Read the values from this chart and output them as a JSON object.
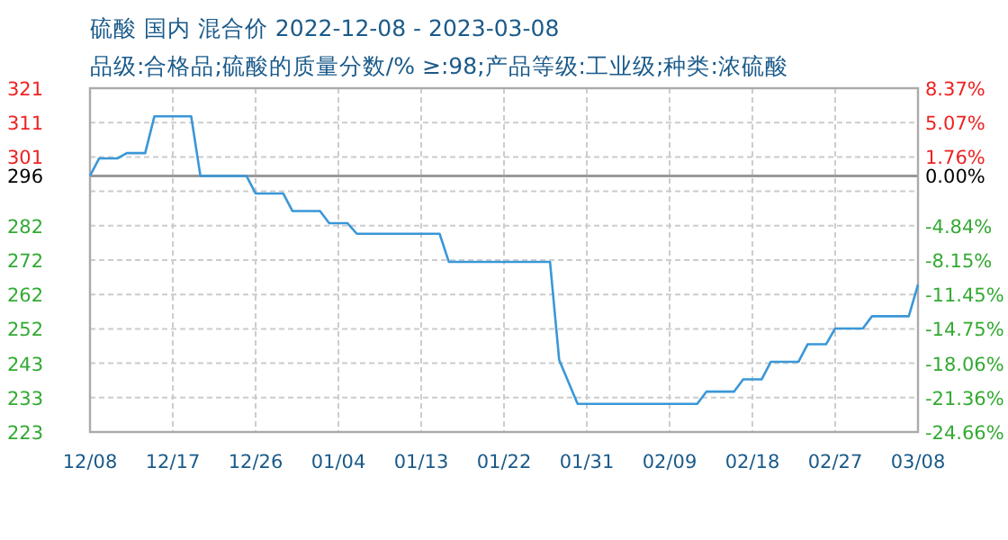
{
  "chart_data": {
    "type": "line",
    "title": "硫酸 国内 混合价 2022-12-08 - 2023-03-08",
    "subtitle": "品级:合格品;硫酸的质量分数/% ≥:98;产品等级:工业级;种类:浓硫酸",
    "x": [
      "2022-12-08",
      "2022-12-09",
      "2022-12-11",
      "2022-12-12",
      "2022-12-14",
      "2022-12-15",
      "2022-12-19",
      "2022-12-20",
      "2022-12-25",
      "2022-12-26",
      "2022-12-29",
      "2022-12-30",
      "2023-01-02",
      "2023-01-03",
      "2023-01-05",
      "2023-01-06",
      "2023-01-15",
      "2023-01-16",
      "2023-01-27",
      "2023-01-28",
      "2023-01-30",
      "2023-02-12",
      "2023-02-13",
      "2023-02-16",
      "2023-02-17",
      "2023-02-19",
      "2023-02-20",
      "2023-02-23",
      "2023-02-24",
      "2023-02-26",
      "2023-02-27",
      "2023-03-02",
      "2023-03-03",
      "2023-03-07",
      "2023-03-08"
    ],
    "series": [
      {
        "color": "#3a97d8",
        "values": [
          296,
          301,
          301,
          302.5,
          302.5,
          313,
          313,
          296,
          296,
          291,
          291,
          286,
          286,
          282.5,
          282.5,
          279.5,
          279.5,
          271.5,
          271.5,
          243.5,
          231,
          231,
          234.5,
          234.5,
          238,
          238,
          243,
          243,
          248,
          248,
          252.5,
          252.5,
          256,
          256,
          265
        ]
      }
    ],
    "xlim": [
      "2022-12-08",
      "2023-03-08"
    ],
    "xticks": [
      {
        "value": "2022-12-08",
        "label": "12/08"
      },
      {
        "value": "2022-12-17",
        "label": "12/17"
      },
      {
        "value": "2022-12-26",
        "label": "12/26"
      },
      {
        "value": "2023-01-04",
        "label": "01/04"
      },
      {
        "value": "2023-01-13",
        "label": "01/13"
      },
      {
        "value": "2023-01-22",
        "label": "01/22"
      },
      {
        "value": "2023-01-31",
        "label": "01/31"
      },
      {
        "value": "2023-02-09",
        "label": "02/09"
      },
      {
        "value": "2023-02-18",
        "label": "02/18"
      },
      {
        "value": "2023-02-27",
        "label": "02/27"
      },
      {
        "value": "2023-03-08",
        "label": "03/08"
      }
    ],
    "ylim": [
      223,
      321
    ],
    "yticks": [
      321,
      {
        "value": 311.2,
        "label": "311"
      },
      {
        "value": 301.4,
        "label": "301"
      },
      {
        "value": 291.6,
        "label": null
      },
      {
        "value": 281.8,
        "label": "282"
      },
      {
        "value": 272,
        "label": "272"
      },
      {
        "value": 262.2,
        "label": "262"
      },
      {
        "value": 252.4,
        "label": "252"
      },
      {
        "value": 242.6,
        "label": "243"
      },
      {
        "value": 232.8,
        "label": "233"
      },
      223
    ],
    "y2lim": [
      -24.66,
      8.37
    ],
    "y2ticks": [
      {
        "value": 8.37,
        "label": "8.37%"
      },
      {
        "value": 5.07,
        "label": "5.07%"
      },
      {
        "value": 1.76,
        "label": "1.76%"
      },
      {
        "value": 0,
        "label": "0.00%"
      },
      {
        "value": -4.84,
        "label": "-4.84%"
      },
      {
        "value": -8.15,
        "label": "-8.15%"
      },
      {
        "value": -11.45,
        "label": "-11.45%"
      },
      {
        "value": -14.75,
        "label": "-14.75%"
      },
      {
        "value": -18.06,
        "label": "-18.06%"
      },
      {
        "value": -21.36,
        "label": "-21.36%"
      },
      {
        "value": -24.66,
        "label": "-24.66%"
      }
    ],
    "ref_lines": [
      {
        "axis": "y",
        "value": 296,
        "label": "296",
        "color": "#999999"
      }
    ],
    "grid": true
  }
}
